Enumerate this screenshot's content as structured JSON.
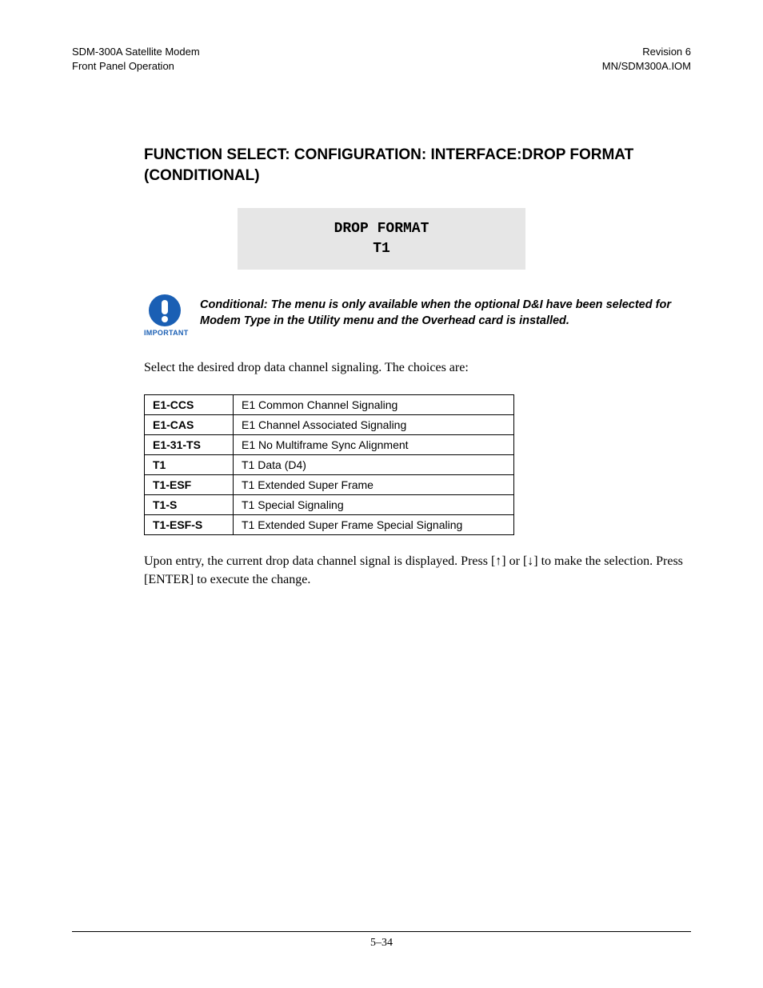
{
  "header": {
    "left_line1": "SDM-300A Satellite Modem",
    "left_line2": "Front Panel Operation",
    "right_line1": "Revision 6",
    "right_line2": "MN/SDM300A.IOM"
  },
  "section_title_line1": "FUNCTION SELECT: CONFIGURATION: INTERFACE:DROP FORMAT",
  "section_title_line2": "(CONDITIONAL)",
  "lcd": {
    "line1": "DROP FORMAT",
    "line2": "T1",
    "bg_color": "#e6e6e6"
  },
  "important": {
    "icon_color": "#1a5fb4",
    "label": "IMPORTANT",
    "text": "Conditional: The menu is only available when the optional D&I have been selected for Modem Type in the Utility menu and the Overhead card is installed."
  },
  "intro_text": "Select the desired drop data channel signaling. The choices are:",
  "table_rows": [
    {
      "code": "E1-CCS",
      "desc": "E1 Common Channel Signaling"
    },
    {
      "code": "E1-CAS",
      "desc": "E1 Channel Associated Signaling"
    },
    {
      "code": "E1-31-TS",
      "desc": "E1 No Multiframe Sync Alignment"
    },
    {
      "code": "T1",
      "desc": "T1 Data (D4)"
    },
    {
      "code": "T1-ESF",
      "desc": "T1 Extended Super Frame"
    },
    {
      "code": "T1-S",
      "desc": "T1 Special Signaling"
    },
    {
      "code": "T1-ESF-S",
      "desc": "T1 Extended Super Frame Special Signaling"
    }
  ],
  "outro_text": "Upon entry, the current drop data channel signal is displayed. Press [↑] or [↓] to make the selection. Press [ENTER] to execute the change.",
  "page_number": "5–34"
}
